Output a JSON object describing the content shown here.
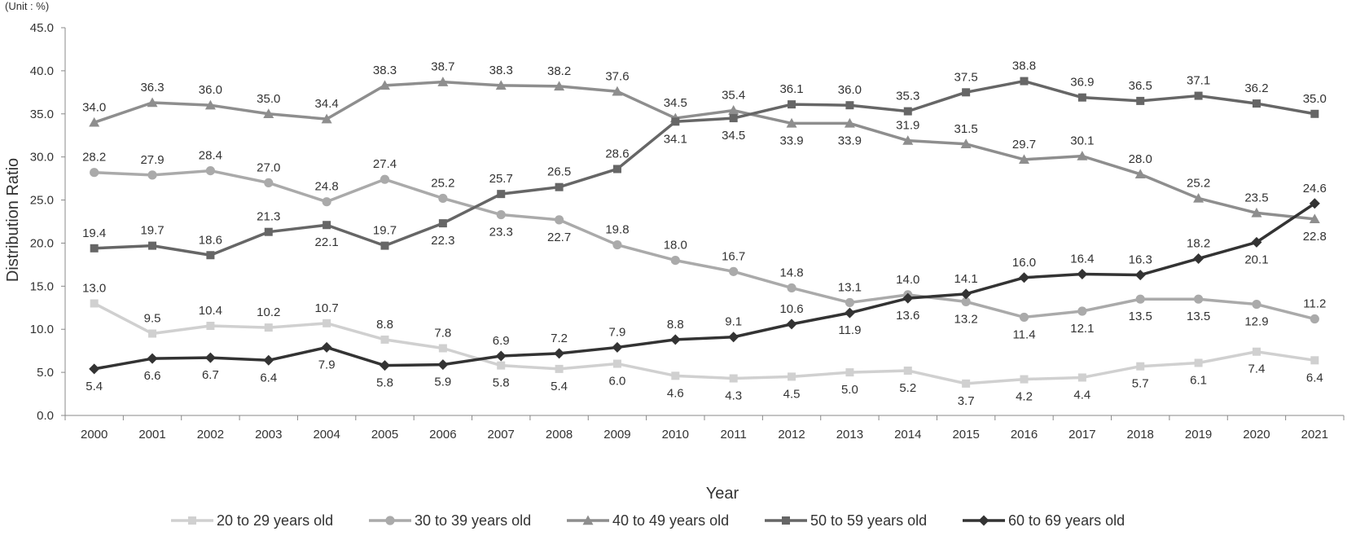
{
  "chart_data": {
    "type": "line",
    "unit_label": "(Unit : %)",
    "xlabel": "Year",
    "ylabel": "Distribution Ratio",
    "ylim": [
      0,
      45
    ],
    "yticks": [
      "0.0",
      "5.0",
      "10.0",
      "15.0",
      "20.0",
      "25.0",
      "30.0",
      "35.0",
      "40.0",
      "45.0"
    ],
    "grid": false,
    "legend_position": "bottom",
    "categories": [
      "2000",
      "2001",
      "2002",
      "2003",
      "2004",
      "2005",
      "2006",
      "2007",
      "2008",
      "2009",
      "2010",
      "2011",
      "2012",
      "2013",
      "2014",
      "2015",
      "2016",
      "2017",
      "2018",
      "2019",
      "2020",
      "2021"
    ],
    "series": [
      {
        "name": "20 to 29 years old",
        "color": "#d0d0d0",
        "marker": "square",
        "values": [
          13.0,
          9.5,
          10.4,
          10.2,
          10.7,
          8.8,
          7.8,
          5.8,
          5.4,
          6.0,
          4.6,
          4.3,
          4.5,
          5.0,
          5.2,
          3.7,
          4.2,
          4.4,
          5.7,
          6.1,
          7.4,
          6.4
        ],
        "label_pos": [
          "a",
          "a",
          "a",
          "a",
          "a",
          "a",
          "a",
          "b",
          "b",
          "b",
          "b",
          "b",
          "b",
          "b",
          "b",
          "b",
          "b",
          "b",
          "b",
          "b",
          "b",
          "b"
        ]
      },
      {
        "name": "30 to 39 years old",
        "color": "#aaaaaa",
        "marker": "circle",
        "values": [
          28.2,
          27.9,
          28.4,
          27.0,
          24.8,
          27.4,
          25.2,
          23.3,
          22.7,
          19.8,
          18.0,
          16.7,
          14.8,
          13.1,
          14.0,
          13.2,
          11.4,
          12.1,
          13.5,
          13.5,
          12.9,
          11.2
        ],
        "label_pos": [
          "a",
          "a",
          "a",
          "a",
          "a",
          "a",
          "a",
          "b",
          "b",
          "a",
          "a",
          "a",
          "a",
          "a",
          "a",
          "b",
          "b",
          "b",
          "b",
          "b",
          "b",
          "a"
        ]
      },
      {
        "name": "40 to 49 years old",
        "color": "#8e8e8e",
        "marker": "triangle",
        "values": [
          34.0,
          36.3,
          36.0,
          35.0,
          34.4,
          38.3,
          38.7,
          38.3,
          38.2,
          37.6,
          34.5,
          35.4,
          33.9,
          33.9,
          31.9,
          31.5,
          29.7,
          30.1,
          28.0,
          25.2,
          23.5,
          22.8
        ],
        "label_pos": [
          "a",
          "a",
          "a",
          "a",
          "a",
          "a",
          "a",
          "a",
          "a",
          "a",
          "a",
          "a",
          "b",
          "b",
          "a",
          "a",
          "a",
          "a",
          "a",
          "a",
          "a",
          "b"
        ]
      },
      {
        "name": "50 to 59 years old",
        "color": "#666666",
        "marker": "square",
        "values": [
          19.4,
          19.7,
          18.6,
          21.3,
          22.1,
          19.7,
          22.3,
          25.7,
          26.5,
          28.6,
          34.1,
          34.5,
          36.1,
          36.0,
          35.3,
          37.5,
          38.8,
          36.9,
          36.5,
          37.1,
          36.2,
          35.0
        ],
        "label_pos": [
          "a",
          "a",
          "a",
          "a",
          "b",
          "a",
          "b",
          "a",
          "a",
          "a",
          "b",
          "b",
          "a",
          "a",
          "a",
          "a",
          "a",
          "a",
          "a",
          "a",
          "a",
          "a"
        ]
      },
      {
        "name": "60 to 69 years old",
        "color": "#333333",
        "marker": "diamond",
        "values": [
          5.4,
          6.6,
          6.7,
          6.4,
          7.9,
          5.8,
          5.9,
          6.9,
          7.2,
          7.9,
          8.8,
          9.1,
          10.6,
          11.9,
          13.6,
          14.1,
          16.0,
          16.4,
          16.3,
          18.2,
          20.1,
          24.6
        ],
        "label_pos": [
          "b",
          "b",
          "b",
          "b",
          "b",
          "b",
          "b",
          "a",
          "a",
          "a",
          "a",
          "a",
          "a",
          "b",
          "b",
          "a",
          "a",
          "a",
          "a",
          "a",
          "b",
          "a"
        ]
      }
    ]
  }
}
